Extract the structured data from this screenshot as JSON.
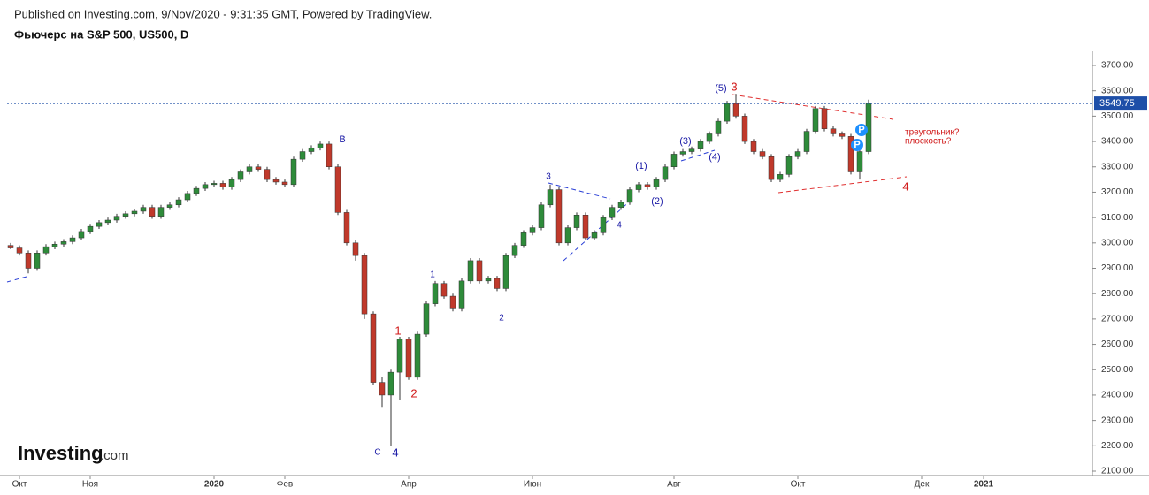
{
  "header": {
    "published": "Published on Investing.com, 9/Nov/2020 - 9:31:35 GMT, Powered by TradingView.",
    "symbol": "Фьючерс на S&P 500, US500, D"
  },
  "logo": {
    "brand": "Investing",
    "suffix": ".com"
  },
  "chart_data": {
    "type": "candlestick",
    "categories": [
      null,
      "Окт",
      null,
      null,
      null,
      null,
      null,
      null,
      null,
      "Ноя",
      null,
      null,
      null,
      null,
      null,
      null,
      null,
      null,
      null,
      null,
      null,
      null,
      null,
      "2020",
      null,
      null,
      null,
      null,
      null,
      null,
      null,
      "Фев",
      null,
      null,
      null,
      null,
      null,
      null,
      null,
      null,
      null,
      null,
      null,
      null,
      null,
      "Апр",
      null,
      null,
      null,
      null,
      null,
      null,
      null,
      null,
      null,
      null,
      null,
      null,
      null,
      "Июн",
      null,
      null,
      null,
      null,
      null,
      null,
      null,
      null,
      null,
      null,
      null,
      null,
      null,
      null,
      null,
      "Авг",
      null,
      null,
      null,
      null,
      null,
      null,
      null,
      null,
      null,
      null,
      null,
      null,
      null,
      "Окт",
      null,
      null,
      null,
      null,
      null,
      null,
      null,
      null,
      null,
      null,
      null,
      null,
      null,
      "Дек",
      null,
      null,
      null,
      null,
      null,
      null,
      "2021",
      null,
      null,
      null,
      null,
      null,
      null,
      null,
      null,
      null,
      null,
      null,
      null
    ],
    "open": [
      2990,
      2980,
      2960,
      2900,
      2960,
      2985,
      2995,
      3005,
      3020,
      3045,
      3065,
      3080,
      3090,
      3105,
      3115,
      3125,
      3140,
      3105,
      3140,
      3150,
      3170,
      3195,
      3215,
      3230,
      3235,
      3220,
      3250,
      3280,
      3300,
      3290,
      3250,
      3240,
      3230,
      3330,
      3360,
      3375,
      3390,
      3300,
      3120,
      3000,
      2950,
      2720,
      2450,
      2400,
      2490,
      2620,
      2470,
      2640,
      2760,
      2840,
      2790,
      2740,
      2850,
      2930,
      2850,
      2860,
      2820,
      2950,
      2990,
      3040,
      3060,
      3150,
      3210,
      3000,
      3060,
      3110,
      3020,
      3040,
      3100,
      3140,
      3160,
      3210,
      3230,
      3220,
      3250,
      3300,
      3350,
      3360,
      3370,
      3400,
      3430,
      3480,
      3550,
      3500,
      3400,
      3360,
      3340,
      3250,
      3270,
      3340,
      3360,
      3440,
      3530,
      3450,
      3430,
      3420,
      3280,
      3360,
      null,
      null,
      null,
      null,
      null,
      null,
      null,
      null,
      null,
      null,
      null,
      null,
      null,
      null,
      null,
      null,
      null,
      null,
      null,
      null,
      null,
      null,
      null,
      null,
      null
    ],
    "high": [
      3000,
      2990,
      2970,
      2970,
      2995,
      3005,
      3015,
      3030,
      3055,
      3075,
      3090,
      3100,
      3115,
      3125,
      3135,
      3150,
      3150,
      3150,
      3160,
      3180,
      3205,
      3225,
      3240,
      3245,
      3245,
      3260,
      3290,
      3310,
      3310,
      3300,
      3260,
      3250,
      3340,
      3370,
      3385,
      3400,
      3400,
      3310,
      3130,
      3010,
      2960,
      2730,
      2470,
      2500,
      2630,
      2630,
      2650,
      2770,
      2850,
      2850,
      2800,
      2860,
      2940,
      2940,
      2870,
      2870,
      2960,
      3000,
      3050,
      3070,
      3160,
      3230,
      3220,
      3070,
      3120,
      3120,
      3050,
      3110,
      3150,
      3170,
      3220,
      3240,
      3240,
      3260,
      3310,
      3360,
      3370,
      3380,
      3410,
      3440,
      3490,
      3560,
      3588,
      3510,
      3410,
      3370,
      3350,
      3280,
      3350,
      3370,
      3450,
      3540,
      3540,
      3460,
      3440,
      3430,
      3370,
      3565,
      null,
      null,
      null,
      null,
      null,
      null,
      null,
      null,
      null,
      null,
      null,
      null,
      null,
      null,
      null,
      null,
      null,
      null,
      null,
      null,
      null,
      null,
      null,
      null,
      null
    ],
    "low": [
      2975,
      2950,
      2880,
      2890,
      2950,
      2975,
      2985,
      2995,
      3010,
      3035,
      3055,
      3070,
      3080,
      3095,
      3105,
      3115,
      3095,
      3095,
      3130,
      3140,
      3160,
      3185,
      3205,
      3220,
      3210,
      3210,
      3240,
      3270,
      3280,
      3240,
      3230,
      3220,
      3220,
      3320,
      3350,
      3365,
      3290,
      3110,
      2990,
      2930,
      2700,
      2440,
      2350,
      2200,
      2380,
      2460,
      2460,
      2630,
      2750,
      2780,
      2730,
      2730,
      2840,
      2840,
      2840,
      2810,
      2810,
      2940,
      2980,
      3030,
      3050,
      3140,
      2990,
      2990,
      3050,
      3010,
      3010,
      3030,
      3090,
      3130,
      3150,
      3200,
      3210,
      3210,
      3240,
      3290,
      3340,
      3350,
      3360,
      3390,
      3420,
      3470,
      3490,
      3390,
      3350,
      3330,
      3240,
      3240,
      3260,
      3330,
      3350,
      3430,
      3440,
      3420,
      3410,
      3270,
      3250,
      3350,
      null,
      null,
      null,
      null,
      null,
      null,
      null,
      null,
      null,
      null,
      null,
      null,
      null,
      null,
      null,
      null,
      null,
      null,
      null,
      null,
      null,
      null,
      null,
      null,
      null
    ],
    "close": [
      2980,
      2960,
      2900,
      2960,
      2985,
      2995,
      3005,
      3020,
      3045,
      3065,
      3080,
      3090,
      3105,
      3115,
      3125,
      3140,
      3105,
      3140,
      3150,
      3170,
      3195,
      3215,
      3230,
      3235,
      3220,
      3250,
      3280,
      3300,
      3290,
      3250,
      3240,
      3230,
      3330,
      3360,
      3375,
      3390,
      3300,
      3120,
      3000,
      2950,
      2720,
      2450,
      2400,
      2490,
      2620,
      2470,
      2640,
      2760,
      2840,
      2790,
      2740,
      2850,
      2930,
      2850,
      2860,
      2820,
      2950,
      2990,
      3040,
      3060,
      3150,
      3210,
      3000,
      3060,
      3110,
      3020,
      3040,
      3100,
      3140,
      3160,
      3210,
      3230,
      3220,
      3250,
      3300,
      3350,
      3360,
      3370,
      3400,
      3430,
      3480,
      3550,
      3500,
      3400,
      3360,
      3340,
      3250,
      3270,
      3340,
      3360,
      3440,
      3530,
      3450,
      3430,
      3420,
      3280,
      3360,
      3550,
      null,
      null,
      null,
      null,
      null,
      null,
      null,
      null,
      null,
      null,
      null,
      null,
      null,
      null,
      null,
      null,
      null,
      null,
      null,
      null,
      null,
      null,
      null,
      null,
      null
    ],
    "up_color": "#2e8b3a",
    "down_color": "#c0392b",
    "last_price": 3549.75,
    "last_price_color": "#1e4fa8",
    "ylim": [
      2100,
      3700
    ],
    "yticks": [
      {
        "value": 2100,
        "label": "2100.00"
      },
      {
        "value": 2200,
        "label": "2200.00"
      },
      {
        "value": 2300,
        "label": "2300.00"
      },
      {
        "value": 2400,
        "label": "2400.00"
      },
      {
        "value": 2500,
        "label": "2500.00"
      },
      {
        "value": 2600,
        "label": "2600.00"
      },
      {
        "value": 2700,
        "label": "2700.00"
      },
      {
        "value": 2800,
        "label": "2800.00"
      },
      {
        "value": 2900,
        "label": "2900.00"
      },
      {
        "value": 3000,
        "label": "3000.00"
      },
      {
        "value": 3100,
        "label": "3100.00"
      },
      {
        "value": 3200,
        "label": "3200.00"
      },
      {
        "value": 3300,
        "label": "3300.00"
      },
      {
        "value": 3400,
        "label": "3400.00"
      },
      {
        "value": 3500,
        "label": "3500.00"
      },
      {
        "value": 3600,
        "label": "3600.00"
      },
      {
        "value": 3700,
        "label": "3700.00"
      }
    ],
    "annotations": [
      {
        "text": "В",
        "color": "#1a1aa6"
      },
      {
        "text": "1",
        "color": "#d01818"
      },
      {
        "text": "2",
        "color": "#d01818"
      },
      {
        "text": "1",
        "color": "#1a1aa6"
      },
      {
        "text": "2",
        "color": "#1a1aa6"
      },
      {
        "text": "3",
        "color": "#1a1aa6"
      },
      {
        "text": "4",
        "color": "#1a1aa6"
      },
      {
        "text": "(1)",
        "color": "#1a1aa6"
      },
      {
        "text": "(2)",
        "color": "#1a1aa6"
      },
      {
        "text": "(3)",
        "color": "#1a1aa6"
      },
      {
        "text": "(4)",
        "color": "#1a1aa6"
      },
      {
        "text": "(5)",
        "color": "#1a1aa6"
      },
      {
        "text": "3",
        "color": "#d01818"
      },
      {
        "text": "4",
        "color": "#d01818"
      },
      {
        "text": "C",
        "color": "#1a1aa6"
      },
      {
        "text": "4",
        "color": "#1a1aa6"
      },
      {
        "text": "треугольник?",
        "color": "#d01818"
      },
      {
        "text": "плоскость?",
        "color": "#d01818"
      },
      {
        "text": "P",
        "color": "#ffffff"
      },
      {
        "text": "P",
        "color": "#ffffff"
      }
    ]
  }
}
